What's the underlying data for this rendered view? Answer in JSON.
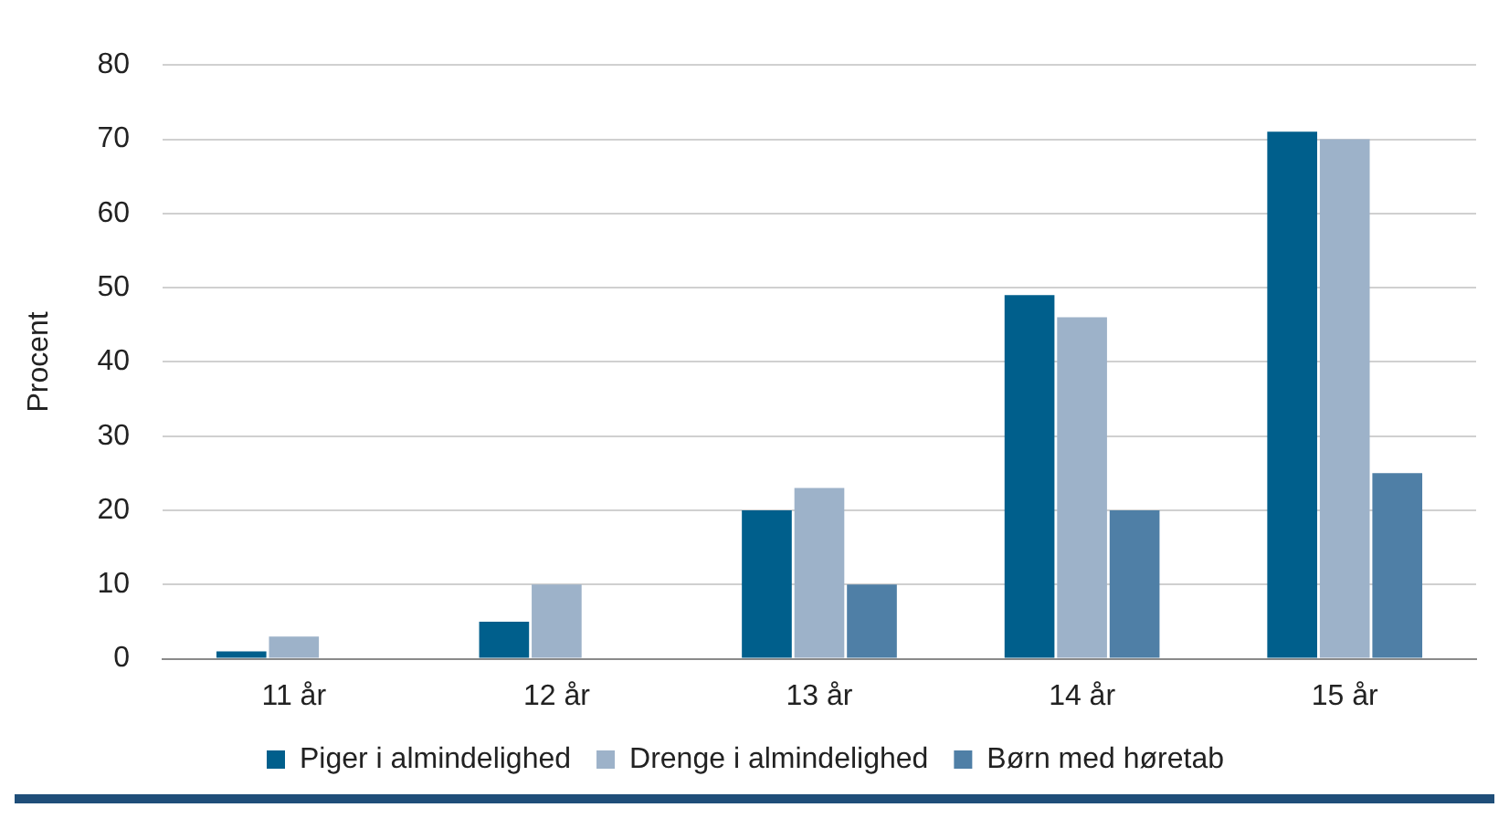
{
  "chart_data": {
    "type": "bar",
    "ylabel": "Procent",
    "categories": [
      "11 år",
      "12 år",
      "13 år",
      "14 år",
      "15 år"
    ],
    "series": [
      {
        "name": "Piger i almindelighed",
        "color": "#005f8c",
        "values": [
          1,
          5,
          20,
          49,
          71
        ]
      },
      {
        "name": "Drenge i almindelighed",
        "color": "#9db2c9",
        "values": [
          3,
          10,
          23,
          46,
          70
        ]
      },
      {
        "name": "Børn med høretab",
        "color": "#4f7fa6",
        "values": [
          null,
          null,
          10,
          20,
          25
        ]
      }
    ],
    "ylim": [
      0,
      80
    ],
    "yticks": [
      0,
      10,
      20,
      30,
      40,
      50,
      60,
      70,
      80
    ],
    "grid": "y",
    "legend": "bottom"
  }
}
